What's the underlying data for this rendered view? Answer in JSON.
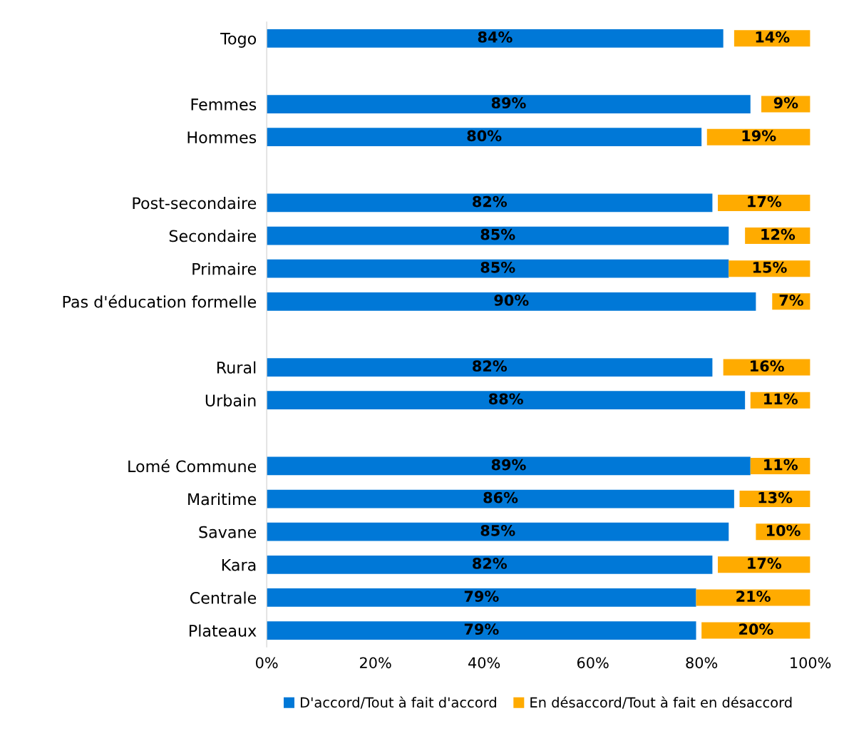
{
  "chart_data": {
    "type": "bar",
    "orientation": "horizontal",
    "categories": [
      "Togo",
      null,
      "Femmes",
      "Hommes",
      null,
      "Post-secondaire",
      "Secondaire",
      "Primaire",
      "Pas d'éducation formelle",
      null,
      "Rural",
      "Urbain",
      null,
      "Lomé Commune",
      "Maritime",
      "Savane",
      "Kara",
      "Centrale",
      "Plateaux"
    ],
    "series": [
      {
        "name": "D'accord/Tout à fait d'accord",
        "color": "#0078d7",
        "values": [
          84,
          null,
          89,
          80,
          null,
          82,
          85,
          85,
          90,
          null,
          82,
          88,
          null,
          89,
          86,
          85,
          82,
          79,
          79
        ],
        "value_labels": [
          "84%",
          null,
          "89%",
          "80%",
          null,
          "82%",
          "85%",
          "85%",
          "90%",
          null,
          "82%",
          "88%",
          null,
          "89%",
          "86%",
          "85%",
          "82%",
          "79%",
          "79%"
        ]
      },
      {
        "name": "En désaccord/Tout à fait en désaccord",
        "color": "#ffab00",
        "values": [
          14,
          null,
          9,
          19,
          null,
          17,
          12,
          15,
          7,
          null,
          16,
          11,
          null,
          11,
          13,
          10,
          17,
          21,
          20
        ],
        "base": [
          86,
          null,
          91,
          81,
          null,
          83,
          88,
          85,
          93,
          null,
          84,
          89,
          null,
          89,
          87,
          90,
          83,
          79,
          80
        ],
        "value_labels": [
          "14%",
          null,
          "9%",
          "19%",
          null,
          "17%",
          "12%",
          "15%",
          "7%",
          null,
          "16%",
          "11%",
          null,
          "11%",
          "13%",
          "10%",
          "17%",
          "21%",
          "20%"
        ]
      }
    ],
    "xlim": [
      0,
      100
    ],
    "xticks": [
      {
        "value": 0,
        "label": "0%"
      },
      {
        "value": 20,
        "label": "20%"
      },
      {
        "value": 40,
        "label": "40%"
      },
      {
        "value": 60,
        "label": "60%"
      },
      {
        "value": 80,
        "label": "80%"
      },
      {
        "value": 100,
        "label": "100%"
      }
    ],
    "grid": false,
    "legend": "bottom"
  }
}
